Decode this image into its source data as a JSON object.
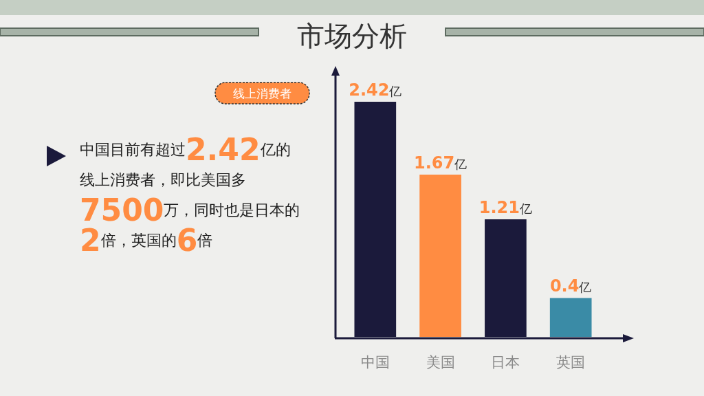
{
  "chart_data": {
    "type": "bar",
    "title": "市场分析",
    "categories": [
      "中国",
      "美国",
      "日本",
      "英国"
    ],
    "values": [
      2.42,
      1.67,
      1.21,
      0.4
    ],
    "colors": [
      "#1b1a3b",
      "#ff8c42",
      "#1b1a3b",
      "#3a8ba6"
    ],
    "value_labels": [
      "2.42亿",
      "1.67亿",
      "1.21亿",
      "0.4亿"
    ],
    "annotations": [
      "线上消费者",
      "中国目前有超过2.42亿的线上消费者，即比美国多7500万，同时也是日本的2倍，英国的6倍"
    ]
  }
}
